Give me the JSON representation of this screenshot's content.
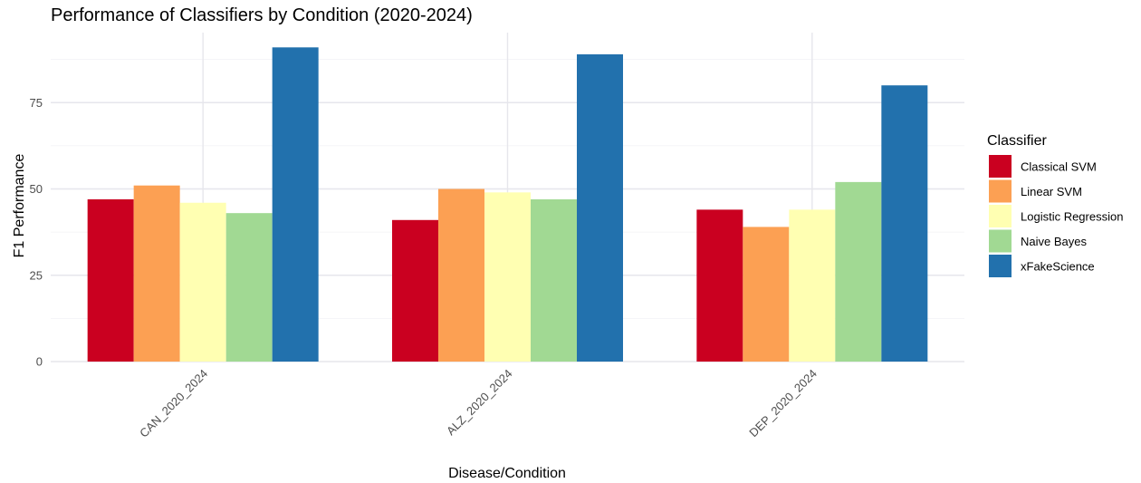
{
  "chart_data": {
    "type": "bar",
    "title": "Performance of Classifiers by Condition (2020-2024)",
    "xlabel": "Disease/Condition",
    "ylabel": "F1 Performance",
    "categories": [
      "CAN_2020_2024",
      "ALZ_2020_2024",
      "DEP_2020_2024"
    ],
    "ylim": [
      0,
      95
    ],
    "yticks": [
      0,
      25,
      50,
      75
    ],
    "grid": true,
    "legend_title": "Classifier",
    "legend_position": "right",
    "series": [
      {
        "name": "Classical SVM",
        "color": "#ca0020",
        "values": [
          47,
          41,
          44
        ]
      },
      {
        "name": "Linear SVM",
        "color": "#fca053",
        "values": [
          51,
          50,
          39
        ]
      },
      {
        "name": "Logistic Regression",
        "color": "#ffffb2",
        "values": [
          46,
          49,
          44
        ]
      },
      {
        "name": "Naive Bayes",
        "color": "#a1d993",
        "values": [
          43,
          47,
          52
        ]
      },
      {
        "name": "xFakeScience",
        "color": "#2271ad",
        "values": [
          91,
          89,
          80
        ]
      }
    ]
  }
}
